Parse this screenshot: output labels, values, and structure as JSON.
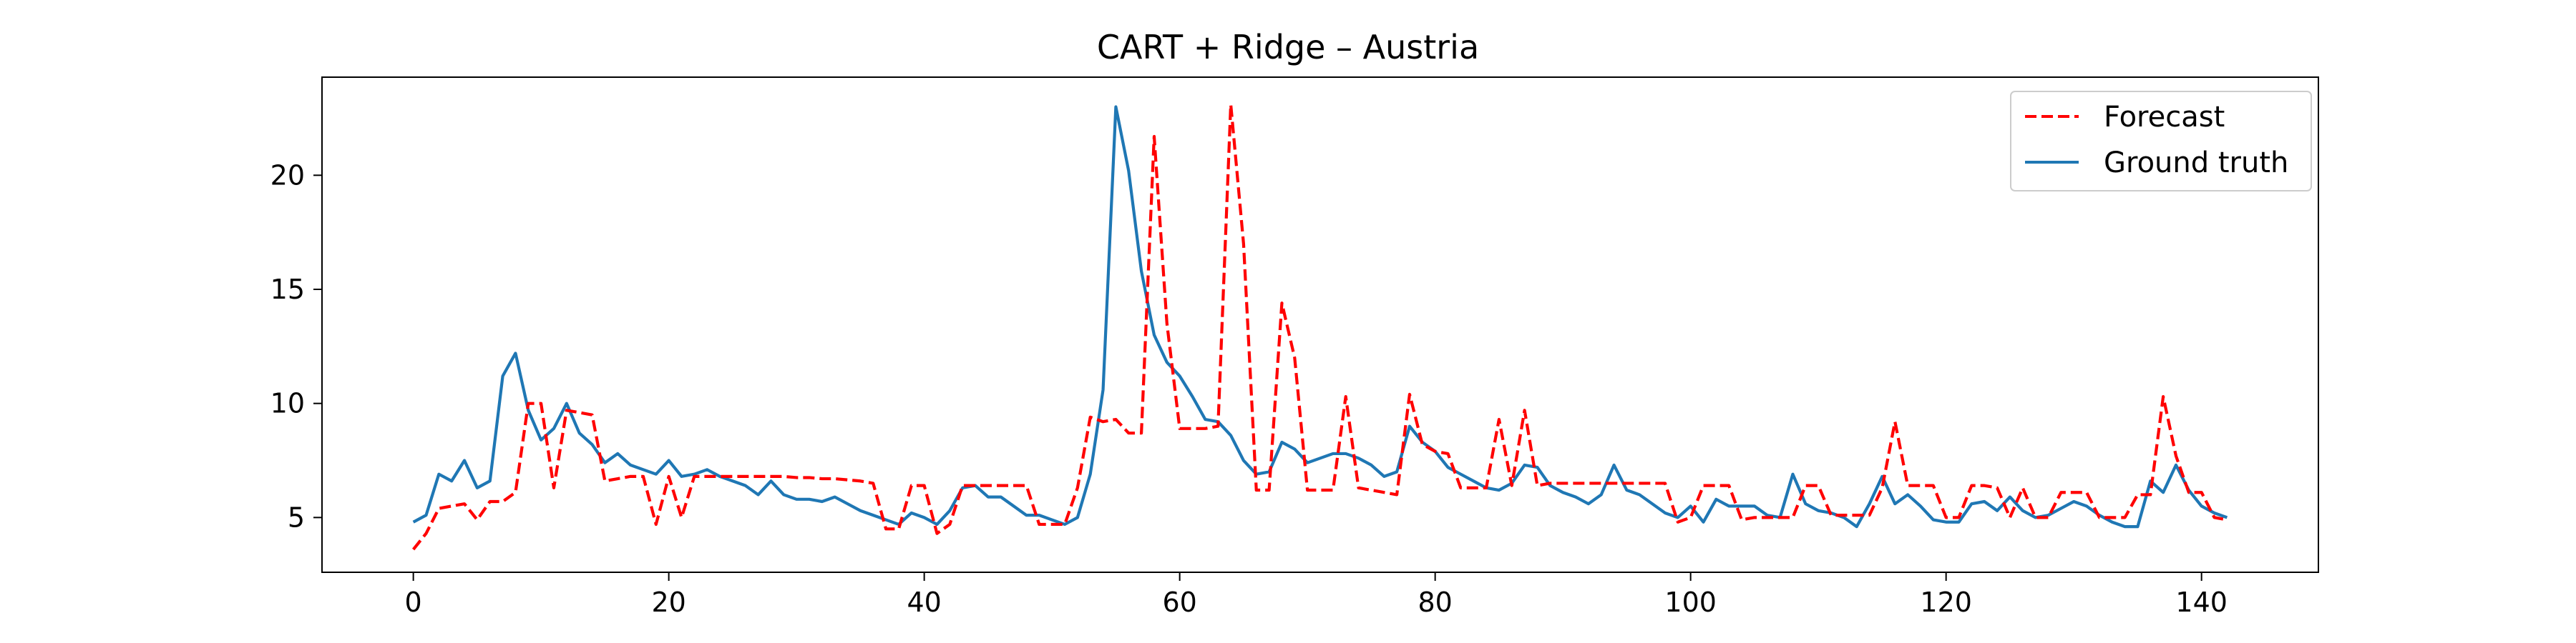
{
  "chart_data": {
    "type": "line",
    "title": "CART + Ridge – Austria",
    "xlabel": "",
    "ylabel": "",
    "xlim": [
      -7.15,
      149.15
    ],
    "ylim": [
      2.6,
      24.3
    ],
    "xticks": [
      0,
      20,
      40,
      60,
      80,
      100,
      120,
      140
    ],
    "yticks": [
      5,
      10,
      15,
      20
    ],
    "grid": false,
    "legend_position": "top-right",
    "series": [
      {
        "name": "Forecast",
        "color": "#ff0000",
        "style": "dashed",
        "values": [
          3.6,
          4.3,
          5.4,
          5.5,
          5.6,
          4.9,
          5.7,
          5.7,
          6.1,
          10.0,
          10.0,
          6.3,
          9.7,
          9.6,
          9.5,
          6.6,
          6.7,
          6.8,
          6.8,
          4.7,
          6.8,
          5.0,
          6.8,
          6.8,
          6.8,
          6.8,
          6.8,
          6.8,
          6.8,
          6.8,
          6.75,
          6.75,
          6.7,
          6.7,
          6.65,
          6.6,
          6.5,
          4.5,
          4.5,
          6.4,
          6.4,
          4.3,
          4.7,
          6.4,
          6.4,
          6.4,
          6.4,
          6.4,
          6.4,
          4.7,
          4.7,
          4.7,
          6.3,
          9.4,
          9.2,
          9.3,
          8.7,
          8.7,
          21.7,
          13.5,
          8.9,
          8.9,
          8.9,
          9.0,
          23.1,
          17.0,
          6.2,
          6.2,
          14.4,
          12.0,
          6.2,
          6.2,
          6.2,
          10.3,
          6.3,
          6.2,
          6.1,
          6.0,
          10.4,
          8.2,
          7.9,
          7.8,
          6.3,
          6.3,
          6.3,
          9.3,
          6.4,
          9.7,
          6.4,
          6.5,
          6.5,
          6.5,
          6.5,
          6.5,
          6.5,
          6.5,
          6.5,
          6.5,
          6.5,
          4.8,
          5.0,
          6.4,
          6.4,
          6.4,
          4.9,
          5.0,
          5.0,
          5.0,
          5.0,
          6.4,
          6.4,
          5.1,
          5.1,
          5.1,
          5.1,
          6.3,
          9.2,
          6.4,
          6.4,
          6.4,
          5.0,
          5.0,
          6.4,
          6.4,
          6.3,
          5.0,
          6.3,
          5.0,
          5.0,
          6.1,
          6.1,
          6.1,
          5.0,
          5.0,
          5.0,
          6.0,
          6.0,
          10.3,
          7.7,
          6.1,
          6.1,
          5.0,
          4.9
        ]
      },
      {
        "name": "Ground truth",
        "color": "#1f77b4",
        "style": "solid",
        "values": [
          4.8,
          5.1,
          6.9,
          6.6,
          7.5,
          6.3,
          6.6,
          11.2,
          12.2,
          9.7,
          8.4,
          8.9,
          10.0,
          8.7,
          8.2,
          7.4,
          7.8,
          7.3,
          7.1,
          6.9,
          7.5,
          6.8,
          6.9,
          7.1,
          6.8,
          6.6,
          6.4,
          6.0,
          6.6,
          6.0,
          5.8,
          5.8,
          5.7,
          5.9,
          5.6,
          5.3,
          5.1,
          4.9,
          4.7,
          5.2,
          5.0,
          4.7,
          5.3,
          6.3,
          6.4,
          5.9,
          5.9,
          5.5,
          5.1,
          5.1,
          4.9,
          4.7,
          5.0,
          6.9,
          10.6,
          23.0,
          20.2,
          15.8,
          13.0,
          11.8,
          11.2,
          10.3,
          9.3,
          9.2,
          8.6,
          7.5,
          6.9,
          7.0,
          8.3,
          8.0,
          7.4,
          7.6,
          7.8,
          7.8,
          7.6,
          7.3,
          6.8,
          7.0,
          9.0,
          8.3,
          7.9,
          7.2,
          6.9,
          6.6,
          6.3,
          6.2,
          6.5,
          7.3,
          7.2,
          6.4,
          6.1,
          5.9,
          5.6,
          6.0,
          7.3,
          6.2,
          6.0,
          5.6,
          5.2,
          5.0,
          5.5,
          4.8,
          5.8,
          5.5,
          5.5,
          5.5,
          5.1,
          5.0,
          6.9,
          5.6,
          5.3,
          5.2,
          5.0,
          4.6,
          5.6,
          6.8,
          5.6,
          6.0,
          5.5,
          4.9,
          4.8,
          4.8,
          5.6,
          5.7,
          5.3,
          5.9,
          5.3,
          5.0,
          5.1,
          5.4,
          5.7,
          5.5,
          5.1,
          4.8,
          4.6,
          4.6,
          6.6,
          6.1,
          7.3,
          6.2,
          5.5,
          5.2,
          5.0
        ]
      }
    ]
  }
}
